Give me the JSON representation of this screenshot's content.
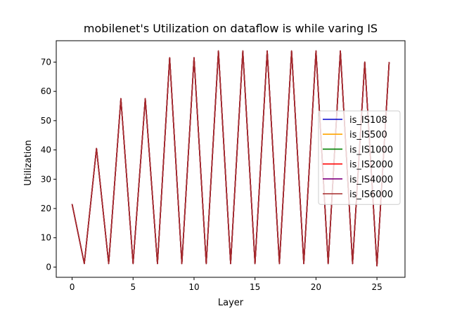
{
  "chart_data": {
    "type": "line",
    "title": "mobilenet's Utilization on dataflow is while varing IS",
    "xlabel": "Layer",
    "ylabel": "Utilization",
    "xlim": [
      -1.3,
      27.3
    ],
    "ylim": [
      -3.5,
      77.3
    ],
    "xticks": [
      0,
      5,
      10,
      15,
      20,
      25
    ],
    "yticks": [
      0,
      10,
      20,
      30,
      40,
      50,
      60,
      70
    ],
    "grid": false,
    "legend_position": "center-right",
    "x": [
      0,
      1,
      2,
      3,
      4,
      5,
      6,
      7,
      8,
      9,
      10,
      11,
      12,
      13,
      14,
      15,
      16,
      17,
      18,
      19,
      20,
      21,
      22,
      23,
      24,
      25,
      26
    ],
    "series": [
      {
        "name": "is_IS108",
        "color": "#0000cc",
        "values": [
          21.5,
          1.2,
          40.5,
          1.2,
          57.5,
          1.2,
          57.5,
          1.2,
          71.5,
          1.2,
          71.5,
          1.2,
          73.8,
          1.2,
          73.8,
          1.2,
          73.8,
          1.2,
          73.8,
          1.2,
          73.8,
          1.2,
          73.8,
          1.2,
          70.0,
          0.4,
          70.0
        ]
      },
      {
        "name": "is_IS500",
        "color": "#ffa500",
        "values": [
          21.5,
          1.2,
          40.5,
          1.2,
          57.5,
          1.2,
          57.5,
          1.2,
          71.5,
          1.2,
          71.5,
          1.2,
          73.8,
          1.2,
          73.8,
          1.2,
          73.8,
          1.2,
          73.8,
          1.2,
          73.8,
          1.2,
          73.8,
          1.2,
          70.0,
          0.4,
          70.0
        ]
      },
      {
        "name": "is_IS1000",
        "color": "#008000",
        "values": [
          21.5,
          1.2,
          40.5,
          1.2,
          57.5,
          1.2,
          57.5,
          1.2,
          71.5,
          1.2,
          71.5,
          1.2,
          73.8,
          1.2,
          73.8,
          1.2,
          73.8,
          1.2,
          73.8,
          1.2,
          73.8,
          1.2,
          73.8,
          1.2,
          70.0,
          0.4,
          70.0
        ]
      },
      {
        "name": "is_IS2000",
        "color": "#ff0000",
        "values": [
          21.5,
          1.2,
          40.5,
          1.2,
          57.5,
          1.2,
          57.5,
          1.2,
          71.5,
          1.2,
          71.5,
          1.2,
          73.8,
          1.2,
          73.8,
          1.2,
          73.8,
          1.2,
          73.8,
          1.2,
          73.8,
          1.2,
          73.8,
          1.2,
          70.0,
          0.4,
          70.0
        ]
      },
      {
        "name": "is_IS4000",
        "color": "#800080",
        "values": [
          21.5,
          1.2,
          40.5,
          1.2,
          57.5,
          1.2,
          57.5,
          1.2,
          71.5,
          1.2,
          71.5,
          1.2,
          73.8,
          1.2,
          73.8,
          1.2,
          73.8,
          1.2,
          73.8,
          1.2,
          73.8,
          1.2,
          73.8,
          1.2,
          70.0,
          0.4,
          70.0
        ]
      },
      {
        "name": "is_IS6000",
        "color": "#a52a2a",
        "values": [
          21.5,
          1.2,
          40.5,
          1.2,
          57.5,
          1.2,
          57.5,
          1.2,
          71.5,
          1.2,
          71.5,
          1.2,
          73.8,
          1.2,
          73.8,
          1.2,
          73.8,
          1.2,
          73.8,
          1.2,
          73.8,
          1.2,
          73.8,
          1.2,
          70.0,
          0.4,
          70.0
        ]
      }
    ]
  }
}
